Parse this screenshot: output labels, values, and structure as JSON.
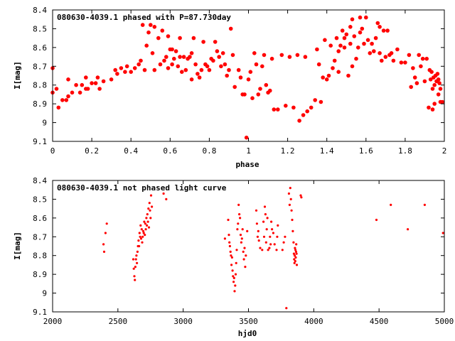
{
  "colors": {
    "series": "#ff0000",
    "axis": "#000000",
    "background": "#ffffff"
  },
  "chart_data": [
    {
      "type": "scatter",
      "title": "080630-4039.1 phased with P=87.730day",
      "xlabel": "phase",
      "ylabel": "I[mag]",
      "xlim": [
        0,
        2
      ],
      "ylim": [
        8.4,
        9.1
      ],
      "y_inverted": true,
      "grid": false,
      "marker": "filled-circle",
      "xticks": [
        "0",
        "0.2",
        "0.4",
        "0.6",
        "0.8",
        "1",
        "1.2",
        "1.4",
        "1.6",
        "1.8",
        "2"
      ],
      "yticks": [
        "8.4",
        "8.5",
        "8.6",
        "8.7",
        "8.8",
        "8.9",
        "9",
        "9.1"
      ],
      "points": [
        [
          0.0,
          8.84
        ],
        [
          0.0,
          8.71
        ],
        [
          0.02,
          8.82
        ],
        [
          0.03,
          8.92
        ],
        [
          0.05,
          8.88
        ],
        [
          0.07,
          8.88
        ],
        [
          0.08,
          8.86
        ],
        [
          0.08,
          8.77
        ],
        [
          0.1,
          8.84
        ],
        [
          0.12,
          8.8
        ],
        [
          0.14,
          8.84
        ],
        [
          0.15,
          8.8
        ],
        [
          0.17,
          8.76
        ],
        [
          0.17,
          8.82
        ],
        [
          0.18,
          8.82
        ],
        [
          0.2,
          8.79
        ],
        [
          0.22,
          8.79
        ],
        [
          0.23,
          8.76
        ],
        [
          0.24,
          8.82
        ],
        [
          0.26,
          8.78
        ],
        [
          0.3,
          8.77
        ],
        [
          0.32,
          8.72
        ],
        [
          0.33,
          8.74
        ],
        [
          0.35,
          8.71
        ],
        [
          0.37,
          8.73
        ],
        [
          0.38,
          8.7
        ],
        [
          0.4,
          8.73
        ],
        [
          0.42,
          8.71
        ],
        [
          0.44,
          8.69
        ],
        [
          0.45,
          8.67
        ],
        [
          0.46,
          8.48
        ],
        [
          0.47,
          8.72
        ],
        [
          0.48,
          8.59
        ],
        [
          0.49,
          8.52
        ],
        [
          0.5,
          8.48
        ],
        [
          0.51,
          8.63
        ],
        [
          0.52,
          8.72
        ],
        [
          0.52,
          8.49
        ],
        [
          0.54,
          8.55
        ],
        [
          0.55,
          8.69
        ],
        [
          0.56,
          8.51
        ],
        [
          0.57,
          8.67
        ],
        [
          0.58,
          8.65
        ],
        [
          0.59,
          8.54
        ],
        [
          0.59,
          8.71
        ],
        [
          0.6,
          8.61
        ],
        [
          0.61,
          8.69
        ],
        [
          0.61,
          8.61
        ],
        [
          0.62,
          8.66
        ],
        [
          0.63,
          8.62
        ],
        [
          0.64,
          8.7
        ],
        [
          0.65,
          8.55
        ],
        [
          0.65,
          8.65
        ],
        [
          0.66,
          8.73
        ],
        [
          0.67,
          8.65
        ],
        [
          0.68,
          8.72
        ],
        [
          0.69,
          8.66
        ],
        [
          0.7,
          8.65
        ],
        [
          0.71,
          8.63
        ],
        [
          0.71,
          8.77
        ],
        [
          0.72,
          8.55
        ],
        [
          0.73,
          8.69
        ],
        [
          0.74,
          8.74
        ],
        [
          0.75,
          8.76
        ],
        [
          0.76,
          8.72
        ],
        [
          0.77,
          8.57
        ],
        [
          0.78,
          8.69
        ],
        [
          0.79,
          8.7
        ],
        [
          0.8,
          8.72
        ],
        [
          0.81,
          8.66
        ],
        [
          0.82,
          8.67
        ],
        [
          0.83,
          8.57
        ],
        [
          0.84,
          8.62
        ],
        [
          0.85,
          8.65
        ],
        [
          0.86,
          8.7
        ],
        [
          0.87,
          8.63
        ],
        [
          0.88,
          8.69
        ],
        [
          0.89,
          8.75
        ],
        [
          0.9,
          8.72
        ],
        [
          0.91,
          8.5
        ],
        [
          0.92,
          8.64
        ],
        [
          0.93,
          8.81
        ],
        [
          0.95,
          8.72
        ],
        [
          0.96,
          8.76
        ],
        [
          0.97,
          8.85
        ],
        [
          0.98,
          8.85
        ],
        [
          0.99,
          9.08
        ],
        [
          1.0,
          8.77
        ],
        [
          1.01,
          8.73
        ],
        [
          1.02,
          8.87
        ],
        [
          1.03,
          8.63
        ],
        [
          1.04,
          8.69
        ],
        [
          1.05,
          8.85
        ],
        [
          1.06,
          8.82
        ],
        [
          1.07,
          8.7
        ],
        [
          1.08,
          8.64
        ],
        [
          1.09,
          8.8
        ],
        [
          1.1,
          8.84
        ],
        [
          1.11,
          8.83
        ],
        [
          1.12,
          8.66
        ],
        [
          1.13,
          8.93
        ],
        [
          1.15,
          8.93
        ],
        [
          1.17,
          8.64
        ],
        [
          1.19,
          8.91
        ],
        [
          1.21,
          8.65
        ],
        [
          1.23,
          8.92
        ],
        [
          1.25,
          8.64
        ],
        [
          1.26,
          8.99
        ],
        [
          1.28,
          8.96
        ],
        [
          1.29,
          8.65
        ],
        [
          1.3,
          8.94
        ],
        [
          1.32,
          8.92
        ],
        [
          1.34,
          8.88
        ],
        [
          1.35,
          8.61
        ],
        [
          1.36,
          8.69
        ],
        [
          1.37,
          8.89
        ],
        [
          1.38,
          8.76
        ],
        [
          1.39,
          8.56
        ],
        [
          1.4,
          8.77
        ],
        [
          1.41,
          8.75
        ],
        [
          1.42,
          8.59
        ],
        [
          1.43,
          8.71
        ],
        [
          1.44,
          8.67
        ],
        [
          1.45,
          8.55
        ],
        [
          1.46,
          8.62
        ],
        [
          1.46,
          8.73
        ],
        [
          1.47,
          8.59
        ],
        [
          1.48,
          8.51
        ],
        [
          1.49,
          8.6
        ],
        [
          1.49,
          8.55
        ],
        [
          1.5,
          8.53
        ],
        [
          1.51,
          8.75
        ],
        [
          1.52,
          8.49
        ],
        [
          1.52,
          8.58
        ],
        [
          1.53,
          8.7
        ],
        [
          1.53,
          8.45
        ],
        [
          1.54,
          8.54
        ],
        [
          1.55,
          8.66
        ],
        [
          1.56,
          8.6
        ],
        [
          1.57,
          8.44
        ],
        [
          1.57,
          8.52
        ],
        [
          1.58,
          8.5
        ],
        [
          1.59,
          8.58
        ],
        [
          1.6,
          8.44
        ],
        [
          1.61,
          8.56
        ],
        [
          1.62,
          8.63
        ],
        [
          1.63,
          8.58
        ],
        [
          1.64,
          8.62
        ],
        [
          1.65,
          8.55
        ],
        [
          1.66,
          8.47
        ],
        [
          1.67,
          8.49
        ],
        [
          1.67,
          8.63
        ],
        [
          1.68,
          8.67
        ],
        [
          1.69,
          8.51
        ],
        [
          1.7,
          8.65
        ],
        [
          1.71,
          8.51
        ],
        [
          1.72,
          8.64
        ],
        [
          1.73,
          8.63
        ],
        [
          1.74,
          8.67
        ],
        [
          1.76,
          8.61
        ],
        [
          1.78,
          8.68
        ],
        [
          1.8,
          8.68
        ],
        [
          1.82,
          8.64
        ],
        [
          1.83,
          8.81
        ],
        [
          1.84,
          8.71
        ],
        [
          1.85,
          8.76
        ],
        [
          1.86,
          8.79
        ],
        [
          1.87,
          8.64
        ],
        [
          1.88,
          8.7
        ],
        [
          1.89,
          8.66
        ],
        [
          1.9,
          8.78
        ],
        [
          1.91,
          8.66
        ],
        [
          1.92,
          8.92
        ],
        [
          1.925,
          8.72
        ],
        [
          1.93,
          8.77
        ],
        [
          1.935,
          8.73
        ],
        [
          1.94,
          8.82
        ],
        [
          1.945,
          8.76
        ],
        [
          1.95,
          8.8
        ],
        [
          1.955,
          8.75
        ],
        [
          1.96,
          8.78
        ],
        [
          1.965,
          8.74
        ],
        [
          1.97,
          8.77
        ],
        [
          1.975,
          8.79
        ],
        [
          1.98,
          8.82
        ],
        [
          1.94,
          8.93
        ],
        [
          1.95,
          8.9
        ],
        [
          1.97,
          8.85
        ],
        [
          1.98,
          8.89
        ],
        [
          1.99,
          8.89
        ]
      ]
    },
    {
      "type": "scatter",
      "title": "080630-4039.1 not phased light curve",
      "xlabel": "hjd0",
      "ylabel": "I[mag]",
      "xlim": [
        2000,
        5000
      ],
      "ylim": [
        8.4,
        9.1
      ],
      "y_inverted": true,
      "grid": false,
      "marker": "small-dot",
      "xticks": [
        "2000",
        "2500",
        "3000",
        "3500",
        "4000",
        "4500",
        "5000"
      ],
      "yticks": [
        "8.4",
        "8.5",
        "8.6",
        "8.7",
        "8.8",
        "8.9",
        "9",
        "9.1"
      ],
      "points": [
        [
          2390,
          8.74
        ],
        [
          2395,
          8.78
        ],
        [
          2405,
          8.68
        ],
        [
          2415,
          8.63
        ],
        [
          2618,
          8.82
        ],
        [
          2622,
          8.87
        ],
        [
          2626,
          8.91
        ],
        [
          2630,
          8.93
        ],
        [
          2634,
          8.86
        ],
        [
          2638,
          8.82
        ],
        [
          2642,
          8.8
        ],
        [
          2646,
          8.84
        ],
        [
          2650,
          8.78
        ],
        [
          2654,
          8.75
        ],
        [
          2658,
          8.72
        ],
        [
          2662,
          8.75
        ],
        [
          2666,
          8.68
        ],
        [
          2670,
          8.7
        ],
        [
          2674,
          8.64
        ],
        [
          2678,
          8.71
        ],
        [
          2682,
          8.66
        ],
        [
          2686,
          8.73
        ],
        [
          2690,
          8.7
        ],
        [
          2694,
          8.67
        ],
        [
          2698,
          8.68
        ],
        [
          2702,
          8.62
        ],
        [
          2706,
          8.69
        ],
        [
          2710,
          8.63
        ],
        [
          2714,
          8.66
        ],
        [
          2718,
          8.6
        ],
        [
          2722,
          8.64
        ],
        [
          2726,
          8.58
        ],
        [
          2730,
          8.62
        ],
        [
          2734,
          8.55
        ],
        [
          2738,
          8.65
        ],
        [
          2742,
          8.52
        ],
        [
          2746,
          8.56
        ],
        [
          2750,
          8.6
        ],
        [
          2754,
          8.48
        ],
        [
          2760,
          8.54
        ],
        [
          2850,
          8.47
        ],
        [
          2870,
          8.5
        ],
        [
          3320,
          8.71
        ],
        [
          3345,
          8.61
        ],
        [
          3350,
          8.69
        ],
        [
          3354,
          8.73
        ],
        [
          3358,
          8.75
        ],
        [
          3362,
          8.78
        ],
        [
          3366,
          8.8
        ],
        [
          3370,
          8.85
        ],
        [
          3374,
          8.81
        ],
        [
          3378,
          8.88
        ],
        [
          3382,
          8.91
        ],
        [
          3386,
          8.94
        ],
        [
          3390,
          8.92
        ],
        [
          3394,
          8.99
        ],
        [
          3398,
          8.96
        ],
        [
          3402,
          8.9
        ],
        [
          3406,
          8.84
        ],
        [
          3410,
          8.77
        ],
        [
          3415,
          8.66
        ],
        [
          3420,
          8.63
        ],
        [
          3425,
          8.53
        ],
        [
          3430,
          8.58
        ],
        [
          3435,
          8.6
        ],
        [
          3440,
          8.69
        ],
        [
          3445,
          8.73
        ],
        [
          3450,
          8.71
        ],
        [
          3455,
          8.66
        ],
        [
          3460,
          8.78
        ],
        [
          3465,
          8.82
        ],
        [
          3470,
          8.76
        ],
        [
          3475,
          8.86
        ],
        [
          3480,
          8.8
        ],
        [
          3490,
          8.67
        ],
        [
          3560,
          8.56
        ],
        [
          3565,
          8.63
        ],
        [
          3570,
          8.7
        ],
        [
          3575,
          8.67
        ],
        [
          3580,
          8.72
        ],
        [
          3590,
          8.76
        ],
        [
          3605,
          8.77
        ],
        [
          3615,
          8.62
        ],
        [
          3620,
          8.7
        ],
        [
          3625,
          8.54
        ],
        [
          3630,
          8.58
        ],
        [
          3635,
          8.73
        ],
        [
          3640,
          8.66
        ],
        [
          3645,
          8.6
        ],
        [
          3650,
          8.77
        ],
        [
          3660,
          8.76
        ],
        [
          3665,
          8.7
        ],
        [
          3670,
          8.74
        ],
        [
          3675,
          8.62
        ],
        [
          3680,
          8.66
        ],
        [
          3690,
          8.68
        ],
        [
          3700,
          8.74
        ],
        [
          3715,
          8.77
        ],
        [
          3720,
          8.7
        ],
        [
          3725,
          8.64
        ],
        [
          3760,
          8.77
        ],
        [
          3770,
          8.73
        ],
        [
          3780,
          8.7
        ],
        [
          3790,
          9.08
        ],
        [
          3810,
          8.47
        ],
        [
          3815,
          8.53
        ],
        [
          3820,
          8.44
        ],
        [
          3825,
          8.5
        ],
        [
          3830,
          8.56
        ],
        [
          3835,
          8.61
        ],
        [
          3840,
          8.67
        ],
        [
          3845,
          8.73
        ],
        [
          3848,
          8.79
        ],
        [
          3850,
          8.82
        ],
        [
          3852,
          8.84
        ],
        [
          3854,
          8.8
        ],
        [
          3856,
          8.76
        ],
        [
          3858,
          8.83
        ],
        [
          3860,
          8.77
        ],
        [
          3862,
          8.81
        ],
        [
          3864,
          8.78
        ],
        [
          3866,
          8.74
        ],
        [
          3868,
          8.79
        ],
        [
          3870,
          8.85
        ],
        [
          3900,
          8.48
        ],
        [
          3905,
          8.49
        ],
        [
          4480,
          8.61
        ],
        [
          4590,
          8.53
        ],
        [
          4720,
          8.66
        ],
        [
          4850,
          8.53
        ],
        [
          4990,
          8.68
        ]
      ]
    }
  ]
}
